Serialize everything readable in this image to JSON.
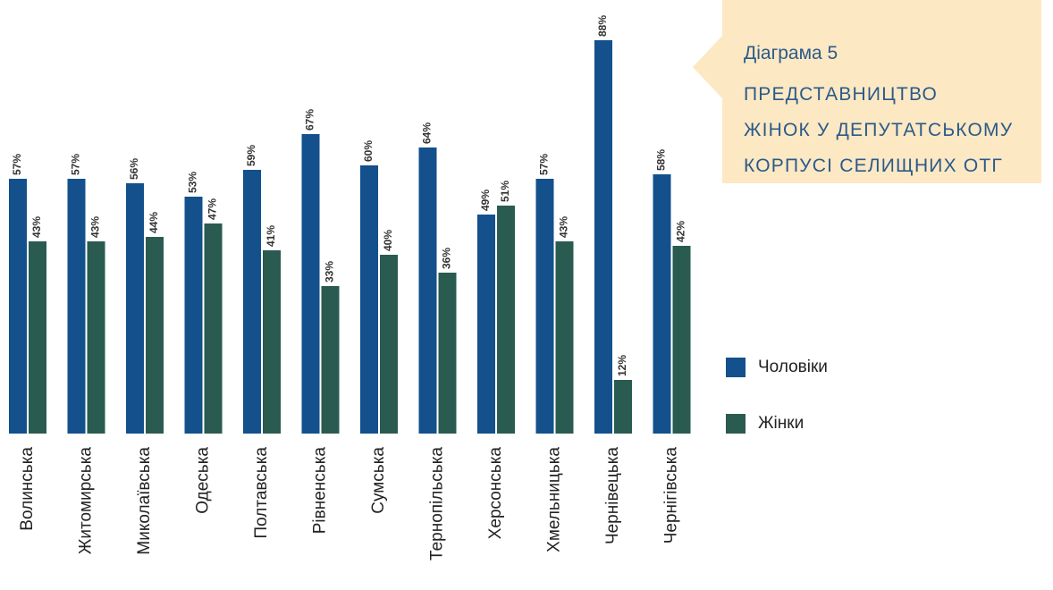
{
  "chart_data": {
    "type": "bar",
    "subtitle": "Діаграма 5",
    "title": "ПРЕДСТАВНИЦТВО\nЖІНОК У ДЕПУТАТСЬКОМУ\nКОРПУСІ СЕЛИЩНИХ ОТГ",
    "categories": [
      "Волинська",
      "Житомирська",
      "Миколаївська",
      "Одеська",
      "Полтавська",
      "Рівненська",
      "Сумська",
      "Тернопільська",
      "Херсонська",
      "Хмельницька",
      "Чернівецька",
      "Чернігівська"
    ],
    "series": [
      {
        "name": "Чоловіки",
        "color": "#13508c",
        "values": [
          57,
          57,
          56,
          53,
          59,
          67,
          60,
          64,
          49,
          57,
          88,
          58
        ],
        "value_labels": [
          "57%",
          "57%",
          "56%",
          "53%",
          "59%",
          "67%",
          "60%",
          "64%",
          "49%",
          "57%",
          "88%",
          "58%"
        ]
      },
      {
        "name": "Жінки",
        "color": "#2a5b50",
        "values": [
          43,
          43,
          44,
          47,
          41,
          33,
          40,
          36,
          51,
          43,
          12,
          42
        ],
        "value_labels": [
          "43%",
          "43%",
          "44%",
          "47%",
          "41%",
          "33%",
          "40%",
          "36%",
          "51%",
          "43%",
          "12%",
          "42%"
        ]
      }
    ],
    "ylim": [
      0,
      100
    ]
  }
}
